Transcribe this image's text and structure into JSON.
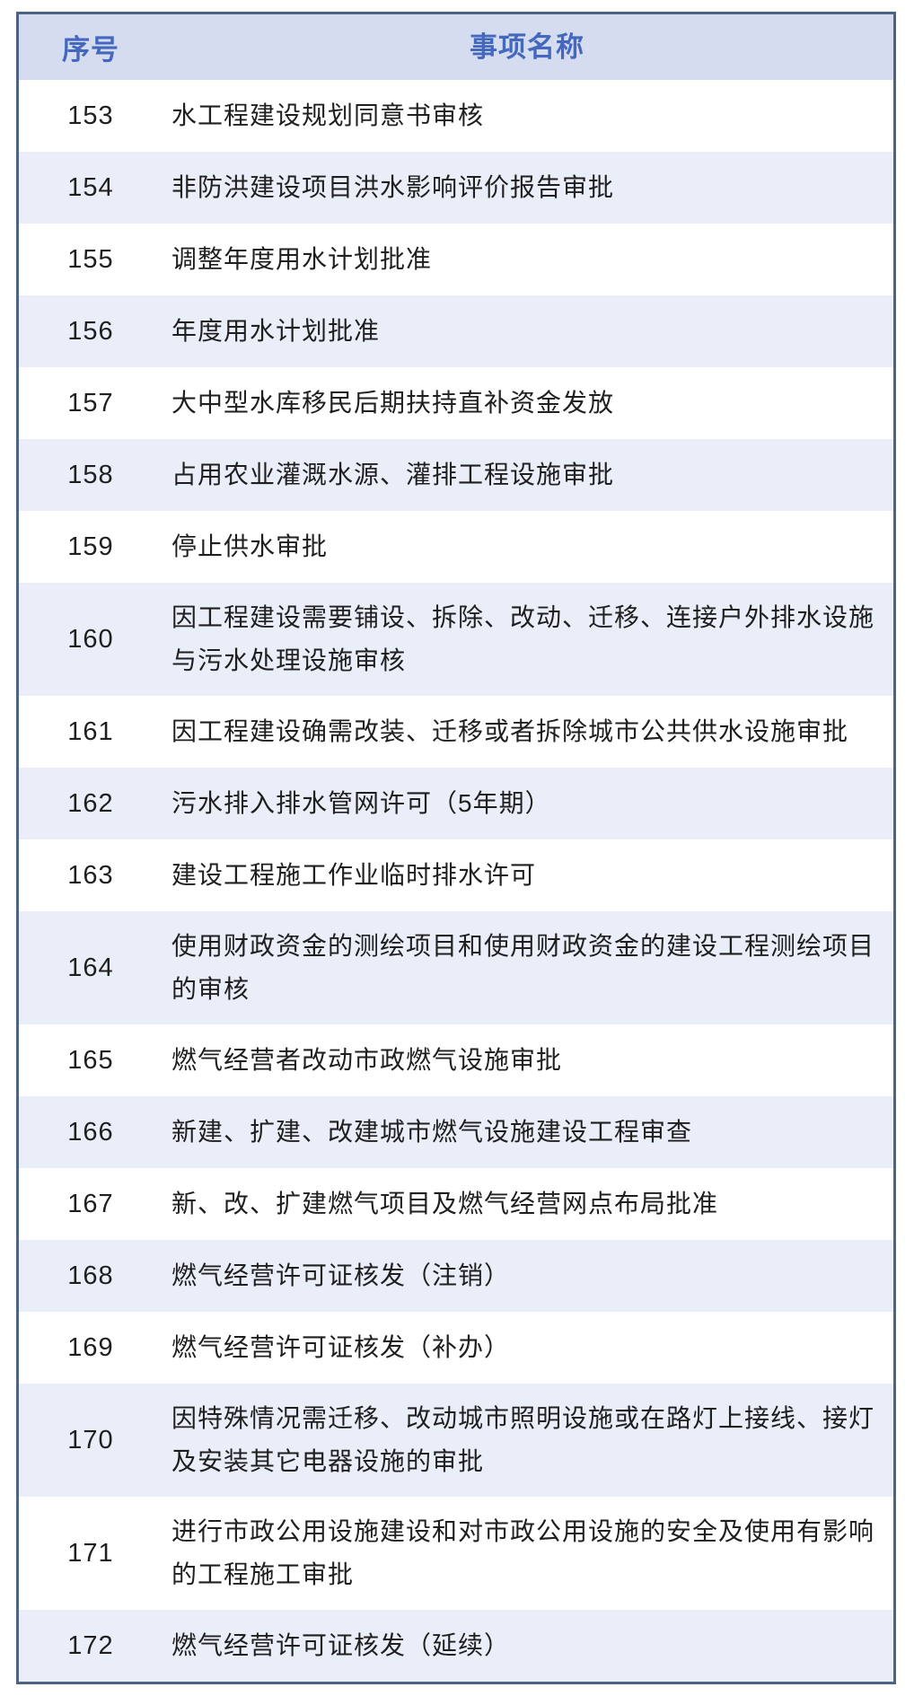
{
  "table": {
    "columns": [
      {
        "key": "id",
        "label": "序号"
      },
      {
        "key": "name",
        "label": "事项名称"
      }
    ],
    "rows": [
      {
        "id": "153",
        "name": "水工程建设规划同意书审核"
      },
      {
        "id": "154",
        "name": "非防洪建设项目洪水影响评价报告审批"
      },
      {
        "id": "155",
        "name": "调整年度用水计划批准"
      },
      {
        "id": "156",
        "name": "年度用水计划批准"
      },
      {
        "id": "157",
        "name": "大中型水库移民后期扶持直补资金发放"
      },
      {
        "id": "158",
        "name": "占用农业灌溉水源、灌排工程设施审批"
      },
      {
        "id": "159",
        "name": "停止供水审批"
      },
      {
        "id": "160",
        "name": "因工程建设需要铺设、拆除、改动、迁移、连接户外排水设施与污水处理设施审核"
      },
      {
        "id": "161",
        "name": "因工程建设确需改装、迁移或者拆除城市公共供水设施审批"
      },
      {
        "id": "162",
        "name": "污水排入排水管网许可（5年期）"
      },
      {
        "id": "163",
        "name": "建设工程施工作业临时排水许可"
      },
      {
        "id": "164",
        "name": "使用财政资金的测绘项目和使用财政资金的建设工程测绘项目的审核"
      },
      {
        "id": "165",
        "name": "燃气经营者改动市政燃气设施审批"
      },
      {
        "id": "166",
        "name": "新建、扩建、改建城市燃气设施建设工程审查"
      },
      {
        "id": "167",
        "name": "新、改、扩建燃气项目及燃气经营网点布局批准"
      },
      {
        "id": "168",
        "name": "燃气经营许可证核发（注销）"
      },
      {
        "id": "169",
        "name": "燃气经营许可证核发（补办）"
      },
      {
        "id": "170",
        "name": "因特殊情况需迁移、改动城市照明设施或在路灯上接线、接灯及安装其它电器设施的审批"
      },
      {
        "id": "171",
        "name": "进行市政公用设施建设和对市政公用设施的安全及使用有影响的工程施工审批"
      },
      {
        "id": "172",
        "name": "燃气经营许可证核发（延续）"
      }
    ],
    "colors": {
      "border": "#4d6384",
      "header_bg": "#d6dcf0",
      "header_text": "#4468be",
      "zebra_row_bg": "#e9eef8",
      "row_bg": "#ffffff",
      "text": "#1f1f1f"
    }
  }
}
